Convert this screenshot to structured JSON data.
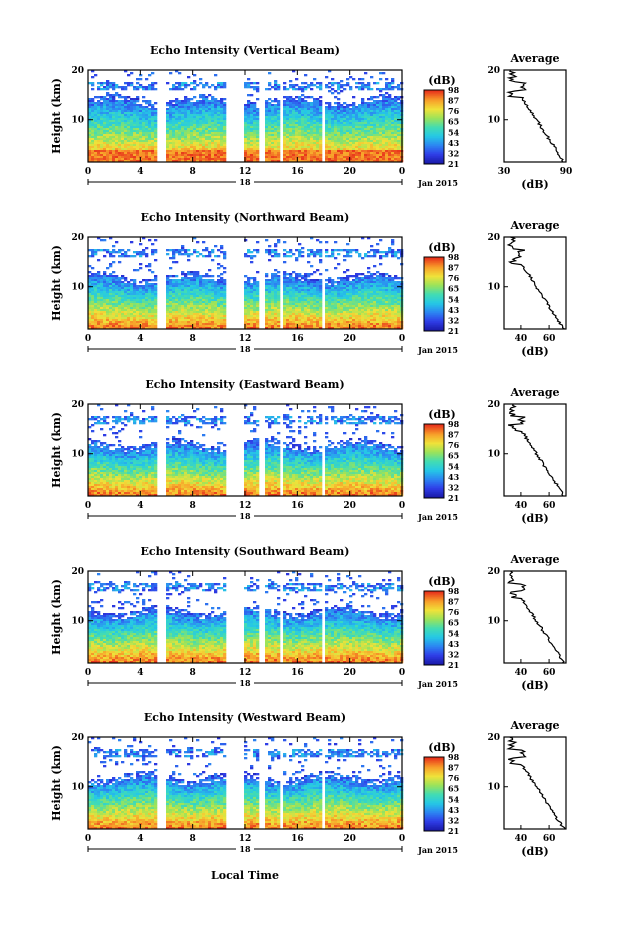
{
  "figure": {
    "xlabel_bottom": "Local Time",
    "date_label": "Jan 2015",
    "day_label": "18",
    "height_label": "Height (km)",
    "unit_label": "(dB)",
    "avg_title": "Average",
    "avg_xlabel": "(dB)"
  },
  "chart_data": [
    {
      "type": "heatmap",
      "title": "Echo Intensity (Vertical Beam)",
      "xlabel": "Local Time",
      "ylabel": "Height (km)",
      "xlim": [
        0,
        24
      ],
      "ylim": [
        1.5,
        20
      ],
      "xticks": [
        "0",
        "4",
        "8",
        "12",
        "16",
        "20",
        "0"
      ],
      "yticks": [
        "10",
        "20"
      ],
      "gaps_hours": [
        [
          5.2,
          5.8
        ],
        [
          10.5,
          11.9
        ],
        [
          12.9,
          13.4
        ],
        [
          14.5,
          14.9
        ],
        [
          17.7,
          18.1
        ]
      ],
      "colorbar": {
        "label": "(dB)",
        "ticks": [
          "21",
          "32",
          "43",
          "54",
          "65",
          "76",
          "87",
          "98"
        ]
      },
      "average": {
        "title": "Average",
        "xlabel": "(dB)",
        "xlim": [
          30,
          90
        ],
        "xticks": [
          "30",
          "90"
        ],
        "yticks": [
          "10",
          "20"
        ]
      }
    },
    {
      "type": "heatmap",
      "title": "Echo Intensity (Northward Beam)",
      "xlabel": "Local Time",
      "ylabel": "Height (km)",
      "xlim": [
        0,
        24
      ],
      "ylim": [
        1.5,
        20
      ],
      "xticks": [
        "0",
        "4",
        "8",
        "12",
        "16",
        "20",
        "0"
      ],
      "yticks": [
        "10",
        "20"
      ],
      "gaps_hours": [
        [
          5.2,
          5.8
        ],
        [
          10.5,
          11.9
        ],
        [
          12.9,
          13.4
        ],
        [
          14.5,
          14.9
        ],
        [
          17.7,
          18.1
        ]
      ],
      "colorbar": {
        "label": "(dB)",
        "ticks": [
          "21",
          "32",
          "43",
          "54",
          "65",
          "76",
          "87",
          "98"
        ]
      },
      "average": {
        "title": "Average",
        "xlabel": "(dB)",
        "xlim": [
          28,
          72
        ],
        "xticks": [
          "40",
          "60"
        ],
        "yticks": [
          "10",
          "20"
        ]
      }
    },
    {
      "type": "heatmap",
      "title": "Echo Intensity (Eastward Beam)",
      "xlabel": "Local Time",
      "ylabel": "Height (km)",
      "xlim": [
        0,
        24
      ],
      "ylim": [
        1.5,
        20
      ],
      "xticks": [
        "0",
        "4",
        "8",
        "12",
        "16",
        "20",
        "0"
      ],
      "yticks": [
        "10",
        "20"
      ],
      "gaps_hours": [
        [
          5.2,
          5.8
        ],
        [
          10.5,
          11.9
        ],
        [
          12.9,
          13.4
        ],
        [
          14.5,
          14.9
        ],
        [
          17.7,
          18.1
        ]
      ],
      "colorbar": {
        "label": "(dB)",
        "ticks": [
          "21",
          "32",
          "43",
          "54",
          "65",
          "76",
          "87",
          "98"
        ]
      },
      "average": {
        "title": "Average",
        "xlabel": "(dB)",
        "xlim": [
          28,
          72
        ],
        "xticks": [
          "40",
          "60"
        ],
        "yticks": [
          "10",
          "20"
        ]
      }
    },
    {
      "type": "heatmap",
      "title": "Echo Intensity (Southward Beam)",
      "xlabel": "Local Time",
      "ylabel": "Height (km)",
      "xlim": [
        0,
        24
      ],
      "ylim": [
        1.5,
        20
      ],
      "xticks": [
        "0",
        "4",
        "8",
        "12",
        "16",
        "20",
        "0"
      ],
      "yticks": [
        "10",
        "20"
      ],
      "gaps_hours": [
        [
          5.2,
          5.8
        ],
        [
          10.5,
          11.9
        ],
        [
          12.9,
          13.4
        ],
        [
          14.5,
          14.9
        ],
        [
          17.7,
          18.1
        ]
      ],
      "colorbar": {
        "label": "(dB)",
        "ticks": [
          "21",
          "32",
          "43",
          "54",
          "65",
          "76",
          "87",
          "98"
        ]
      },
      "average": {
        "title": "Average",
        "xlabel": "(dB)",
        "xlim": [
          28,
          72
        ],
        "xticks": [
          "40",
          "60"
        ],
        "yticks": [
          "10",
          "20"
        ]
      }
    },
    {
      "type": "heatmap",
      "title": "Echo Intensity (Westward Beam)",
      "xlabel": "Local Time",
      "ylabel": "Height (km)",
      "xlim": [
        0,
        24
      ],
      "ylim": [
        1.5,
        20
      ],
      "xticks": [
        "0",
        "4",
        "8",
        "12",
        "16",
        "20",
        "0"
      ],
      "yticks": [
        "10",
        "20"
      ],
      "gaps_hours": [
        [
          5.2,
          5.8
        ],
        [
          10.5,
          11.9
        ],
        [
          12.9,
          13.4
        ],
        [
          14.5,
          14.9
        ],
        [
          17.7,
          18.1
        ]
      ],
      "colorbar": {
        "label": "(dB)",
        "ticks": [
          "21",
          "32",
          "43",
          "54",
          "65",
          "76",
          "87",
          "98"
        ]
      },
      "average": {
        "title": "Average",
        "xlabel": "(dB)",
        "xlim": [
          28,
          72
        ],
        "xticks": [
          "40",
          "60"
        ],
        "yticks": [
          "10",
          "20"
        ]
      }
    }
  ]
}
